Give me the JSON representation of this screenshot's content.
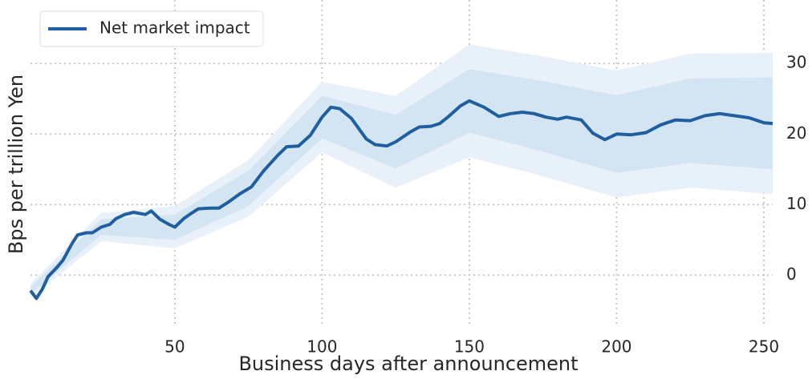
{
  "chart_data": {
    "type": "line",
    "xlabel": "Business days after announcement",
    "ylabel": "Bps per trillion Yen",
    "x": [
      1,
      3,
      5,
      7,
      10,
      12,
      15,
      17,
      20,
      22,
      25,
      28,
      30,
      33,
      36,
      40,
      42,
      45,
      48,
      50,
      53,
      55,
      58,
      62,
      65,
      68,
      72,
      76,
      80,
      85,
      88,
      92,
      96,
      100,
      103,
      106,
      110,
      115,
      118,
      122,
      125,
      130,
      133,
      137,
      140,
      143,
      147,
      150,
      155,
      160,
      164,
      168,
      172,
      176,
      180,
      183,
      188,
      192,
      196,
      200,
      205,
      210,
      215,
      220,
      225,
      230,
      235,
      240,
      245,
      250,
      253
    ],
    "series": [
      {
        "name": "Net market impact",
        "color": "#1f5f9f",
        "values": [
          -2.2,
          -3.3,
          -2,
          -0.2,
          1.1,
          2.1,
          4.4,
          5.7,
          6,
          6,
          6.8,
          7.2,
          8,
          8.6,
          8.9,
          8.6,
          9.1,
          7.9,
          7.2,
          6.8,
          8,
          8.6,
          9.4,
          9.5,
          9.5,
          10.3,
          11.5,
          12.5,
          14.7,
          17,
          18.2,
          18.3,
          19.8,
          22.4,
          23.8,
          23.6,
          22.2,
          19.3,
          18.5,
          18.3,
          18.9,
          20.3,
          21,
          21.1,
          21.5,
          22.5,
          24,
          24.7,
          23.8,
          22.5,
          22.9,
          23.1,
          22.9,
          22.4,
          22.1,
          22.4,
          22,
          20.1,
          19.2,
          20,
          19.9,
          20.2,
          21.3,
          22,
          21.9,
          22.6,
          22.9,
          22.6,
          22.3,
          21.6,
          21.5
        ]
      }
    ],
    "bands": [
      {
        "color": "#e8f0f9",
        "x": [
          1,
          25,
          50,
          75,
          100,
          125,
          150,
          175,
          200,
          225,
          253
        ],
        "lower": [
          -3.2,
          4.8,
          3.8,
          8.3,
          17.4,
          12.4,
          16.7,
          14.0,
          11.0,
          12.4,
          11.5
        ],
        "upper": [
          -1.2,
          8.8,
          9.8,
          16.3,
          27.4,
          25.4,
          32.7,
          31.0,
          29.0,
          31.4,
          31.5
        ]
      },
      {
        "color": "#d3e4f3",
        "x": [
          1,
          25,
          50,
          75,
          100,
          125,
          150,
          175,
          200,
          225,
          253
        ],
        "lower": [
          -2.7,
          5.7,
          5.0,
          9.8,
          19.4,
          15.1,
          20.2,
          17.5,
          14.5,
          15.9,
          15.0
        ],
        "upper": [
          -1.7,
          7.9,
          8.6,
          14.8,
          25.4,
          22.7,
          29.2,
          27.5,
          25.5,
          27.9,
          28.0
        ]
      }
    ],
    "xlim": [
      1,
      253
    ],
    "ylim": [
      -7,
      39
    ],
    "xticks": [
      50,
      100,
      150,
      200,
      250
    ],
    "yticks": [
      0,
      10,
      20,
      30
    ],
    "grid": true,
    "legend": "upper left"
  }
}
